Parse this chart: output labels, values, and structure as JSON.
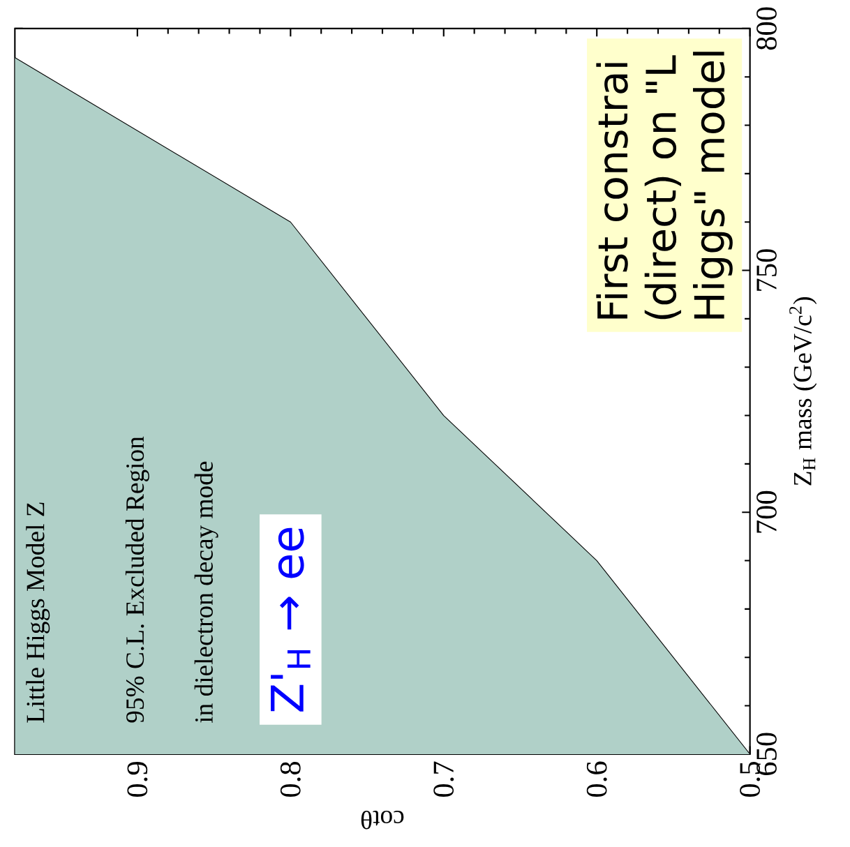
{
  "chart_data": {
    "type": "area",
    "xlabel": "cotθ",
    "ylabel": "Z$_{H}$ mass (GeV/c$^{2}$)",
    "x": [
      0.98,
      0.8,
      0.7,
      0.6,
      0.5
    ],
    "series": [
      {
        "color": "#b0d0c8",
        "values": [
          794,
          760,
          720,
          690,
          650
        ]
      }
    ],
    "xlim": [
      0.98,
      0.5
    ],
    "ylim": [
      650,
      800
    ],
    "xticks": [
      0.9,
      0.8,
      0.7,
      0.6,
      0.5
    ],
    "yticks": [
      650,
      700,
      750,
      800
    ],
    "annotations": [
      "Little Higgs Model Z",
      "95% C.L. Excluded Region",
      "in dielectron decay mode",
      "Z'$_{H}$ → ee",
      "First constrai",
      "(direct) on \"L",
      "Higgs\" model"
    ],
    "grid": false
  }
}
